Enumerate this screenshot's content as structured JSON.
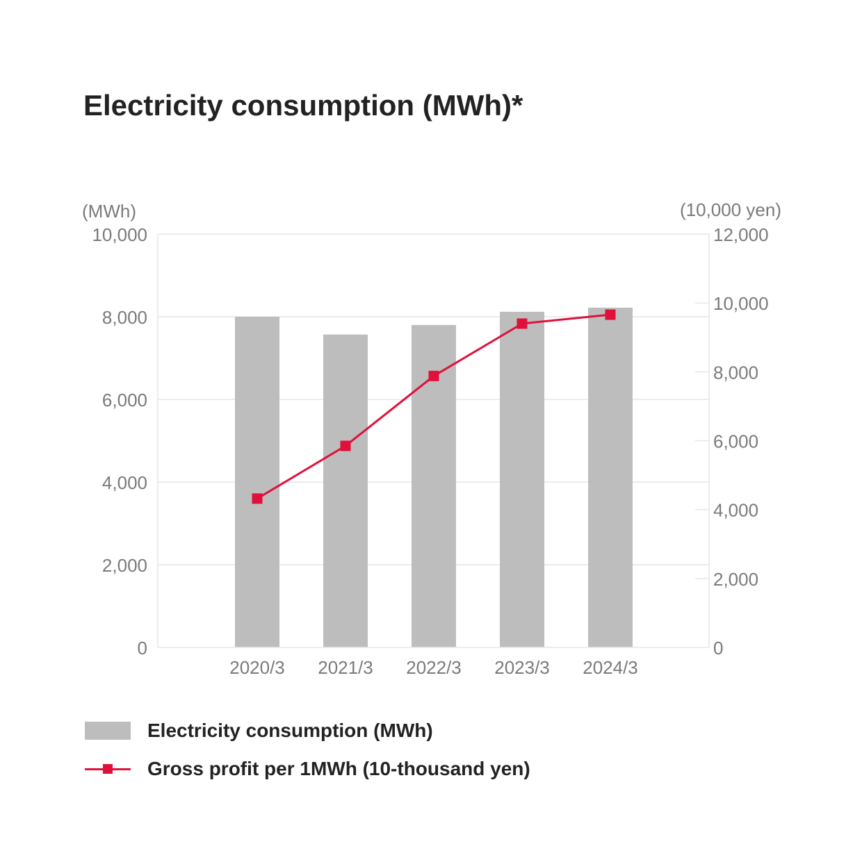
{
  "title": "Electricity consumption (MWh)*",
  "colors": {
    "bar": "#bdbdbd",
    "line": "#e0103a",
    "grid": "#e6e6e6",
    "tick": "#7a7a7a"
  },
  "chart_data": {
    "type": "bar",
    "categories": [
      "2020/3",
      "2021/3",
      "2022/3",
      "2023/3",
      "2024/3"
    ],
    "series": [
      {
        "name": "Electricity consumption (MWh)",
        "type": "bar",
        "axis": "left",
        "values": [
          8000,
          7570,
          7800,
          8120,
          8220
        ]
      },
      {
        "name": "Gross profit per 1MWh (10-thousand yen)",
        "type": "line",
        "axis": "right",
        "values": [
          4320,
          5850,
          7880,
          9400,
          9660
        ]
      }
    ],
    "y_left": {
      "unit_label": "(MWh)",
      "ylim": [
        0,
        10000
      ],
      "ticks": [
        "0",
        "2,000",
        "4,000",
        "6,000",
        "8,000",
        "10,000"
      ]
    },
    "y_right": {
      "unit_label": "(10,000 yen)",
      "ylim": [
        0,
        12000
      ],
      "ticks": [
        "0",
        "2,000",
        "4,000",
        "6,000",
        "8,000",
        "10,000",
        "12,000"
      ]
    },
    "grid": true,
    "legend_position": "bottom-left"
  },
  "legend": {
    "bar_label": "Electricity consumption (MWh)",
    "line_label": "Gross profit per 1MWh (10-thousand yen)"
  }
}
